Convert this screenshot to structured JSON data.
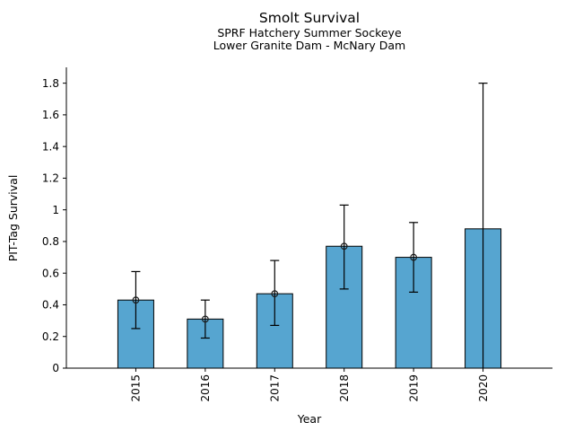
{
  "chart_data": {
    "type": "bar",
    "title": "Smolt Survival",
    "subtitle": [
      "SPRF Hatchery Summer Sockeye",
      "Lower Granite Dam - McNary Dam"
    ],
    "xlabel": "Year",
    "ylabel": "PIT-Tag Survival",
    "categories": [
      "2015",
      "2016",
      "2017",
      "2018",
      "2019",
      "2020"
    ],
    "values": [
      0.43,
      0.31,
      0.47,
      0.77,
      0.7,
      0.88
    ],
    "error_low": [
      0.25,
      0.19,
      0.27,
      0.5,
      0.48,
      0.0
    ],
    "error_high": [
      0.61,
      0.43,
      0.68,
      1.03,
      0.92,
      1.8
    ],
    "point_markers": [
      0.43,
      0.31,
      0.47,
      0.77,
      0.7,
      null
    ],
    "y_ticks": [
      0,
      0.2,
      0.4,
      0.6,
      0.8,
      1.0,
      1.2,
      1.4,
      1.6,
      1.8
    ],
    "y_tick_labels": [
      "0",
      "0.2",
      "0.4",
      "0.6",
      "0.8",
      "1",
      "1.2",
      "1.4",
      "1.6",
      "1.8"
    ],
    "ylim": [
      0,
      1.9
    ],
    "grid": false,
    "legend_position": "none",
    "x_tick_rotation_deg": 90,
    "marker_style": "open-circle",
    "bar_color": "#56a5d0",
    "bar_edge_color": "#000000",
    "error_bar_color": "#000000",
    "marker_edge_color": "#1a1a1a",
    "axis_color": "#000000",
    "background_color": "#ffffff"
  }
}
